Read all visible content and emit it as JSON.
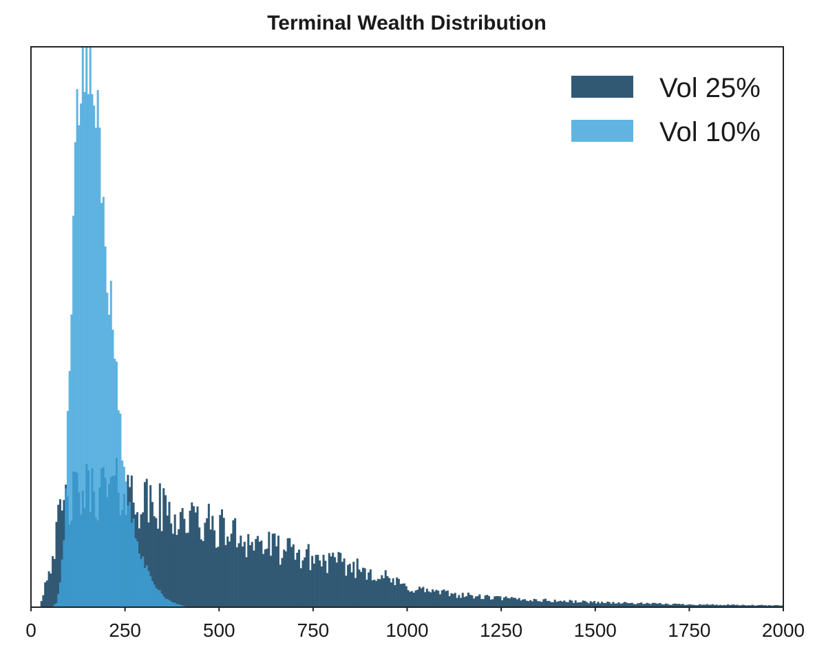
{
  "chart_data": {
    "type": "histogram",
    "title": "Terminal Wealth Distribution",
    "xlabel": "",
    "ylabel": "",
    "xlim": [
      0,
      2000
    ],
    "ylim": [
      0,
      100
    ],
    "y_ticks_shown": false,
    "x_ticks": [
      0,
      250,
      500,
      750,
      1000,
      1250,
      1500,
      1750,
      2000
    ],
    "grid": false,
    "legend_position": "top-right",
    "bin_width": 5,
    "series": [
      {
        "name": "Vol 25%",
        "color": "#2e5671",
        "opacity": 0.98,
        "curve_x": [
          25,
          40,
          60,
          80,
          100,
          130,
          160,
          200,
          240,
          260,
          300,
          350,
          400,
          450,
          500,
          600,
          700,
          800,
          900,
          1000,
          1100,
          1200,
          1300,
          1400,
          1500,
          1600,
          1700,
          1800,
          1900,
          2000
        ],
        "curve_y": [
          0.5,
          5,
          10,
          17,
          19,
          20,
          21,
          21,
          21,
          20.5,
          18.5,
          17.3,
          16,
          15,
          14,
          11.5,
          9.5,
          8,
          6.5,
          3.5,
          2.5,
          1.8,
          1.4,
          1.1,
          0.9,
          0.7,
          0.55,
          0.45,
          0.35,
          0.3
        ]
      },
      {
        "name": "Vol 10%",
        "color": "#3ea4da",
        "opacity": 0.82,
        "curve_x": [
          55,
          70,
          80,
          90,
          100,
          110,
          120,
          130,
          140,
          150,
          160,
          170,
          180,
          190,
          200,
          210,
          220,
          230,
          240,
          250,
          260,
          280,
          300,
          320,
          340,
          360,
          380,
          400,
          420
        ],
        "curve_y": [
          0,
          1,
          6,
          14,
          40,
          64,
          84,
          91,
          96,
          98,
          97,
          92,
          83,
          73,
          64,
          56,
          47,
          38,
          30,
          24,
          18,
          12,
          8,
          5,
          3,
          1.5,
          0.8,
          0.3,
          0
        ]
      }
    ]
  }
}
